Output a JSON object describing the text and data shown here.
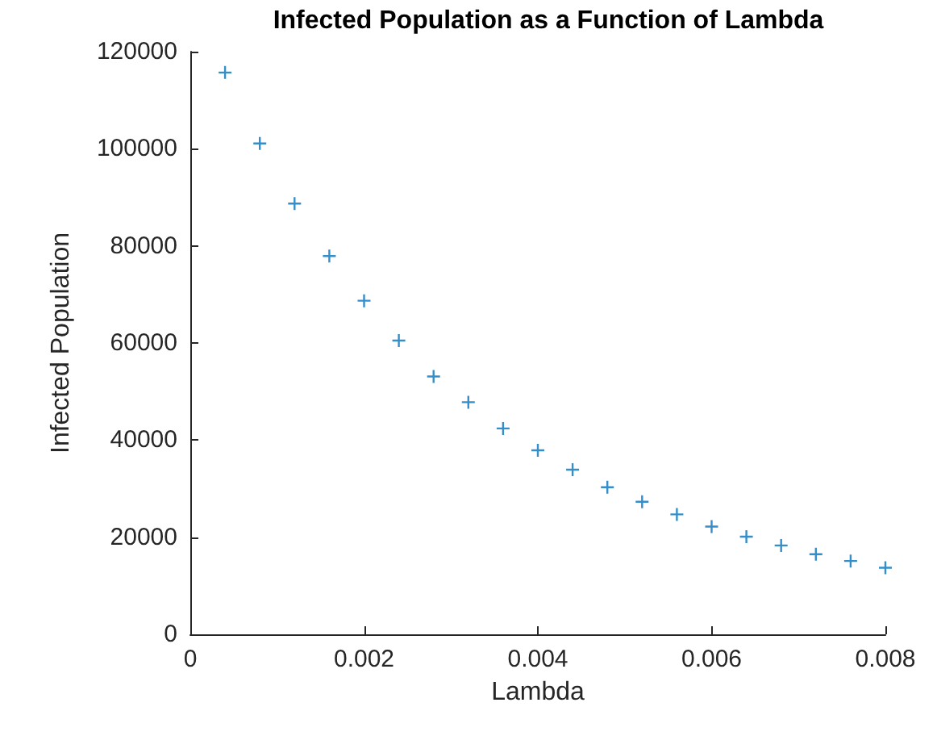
{
  "chart_data": {
    "type": "scatter",
    "title": "Infected Population as a Function of Lambda",
    "xlabel": "Lambda",
    "ylabel": "Infected Population",
    "x": [
      0.0004,
      0.0008,
      0.0012,
      0.0016,
      0.002,
      0.0024,
      0.0028,
      0.0032,
      0.0036,
      0.004,
      0.0044,
      0.0048,
      0.0052,
      0.0056,
      0.006,
      0.0064,
      0.0068,
      0.0072,
      0.0076,
      0.008
    ],
    "values": [
      115700,
      101100,
      88700,
      77900,
      68700,
      60500,
      53100,
      47800,
      42400,
      37900,
      33900,
      30300,
      27300,
      24700,
      22200,
      20100,
      18300,
      16500,
      15100,
      13700
    ],
    "color": "#0072bd",
    "marker": "cross",
    "grid": false,
    "xlim": [
      0,
      0.008
    ],
    "xticks": [
      0,
      0.002,
      0.004,
      0.006,
      0.008
    ],
    "ylim": [
      0,
      120000
    ],
    "yticks": [
      0,
      20000,
      40000,
      60000,
      80000,
      100000,
      120000
    ]
  }
}
